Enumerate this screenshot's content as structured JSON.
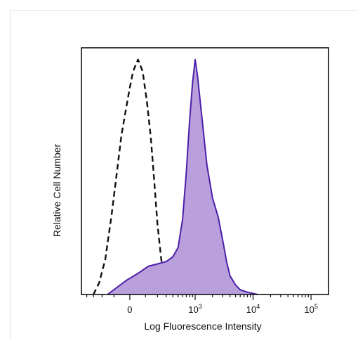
{
  "chart_data": {
    "type": "area",
    "xlabel": "Log Fluorescence Intensity",
    "ylabel": "Relative Cell Number",
    "x_scale": "biexponential",
    "xlim": [
      -500,
      200000
    ],
    "ylim": [
      0,
      1.05
    ],
    "x_ticks": [
      {
        "value": 0,
        "base": "0",
        "exp": ""
      },
      {
        "value": 1000,
        "base": "10",
        "exp": "3"
      },
      {
        "value": 10000,
        "base": "10",
        "exp": "4"
      },
      {
        "value": 100000,
        "base": "10",
        "exp": "5"
      }
    ],
    "series": [
      {
        "style": "dashed",
        "fill": "none",
        "stroke": "#111111",
        "x": [
          -300,
          -230,
          -170,
          -120,
          -80,
          -50,
          -20,
          0,
          20,
          50,
          80,
          110,
          140,
          170,
          200,
          240,
          280,
          330,
          400,
          480,
          600,
          800
        ],
        "y": [
          0.0,
          0.05,
          0.15,
          0.33,
          0.52,
          0.68,
          0.8,
          0.88,
          0.95,
          1.0,
          0.95,
          0.82,
          0.67,
          0.48,
          0.3,
          0.15,
          0.07,
          0.04,
          0.03,
          0.02,
          0.01,
          0.0
        ]
      },
      {
        "style": "solid",
        "fill": "#b9a0dd",
        "stroke": "#4b1fa8",
        "x": [
          -150,
          -80,
          -20,
          50,
          120,
          200,
          300,
          400,
          500,
          600,
          700,
          800,
          900,
          1000,
          1100,
          1300,
          1600,
          2000,
          2500,
          3000,
          3500,
          4000,
          5000,
          6000,
          8000,
          12000
        ],
        "y": [
          0.0,
          0.03,
          0.06,
          0.09,
          0.12,
          0.13,
          0.14,
          0.16,
          0.2,
          0.32,
          0.52,
          0.74,
          0.9,
          1.0,
          0.93,
          0.76,
          0.55,
          0.41,
          0.33,
          0.23,
          0.14,
          0.08,
          0.04,
          0.02,
          0.01,
          0.0
        ]
      }
    ]
  }
}
